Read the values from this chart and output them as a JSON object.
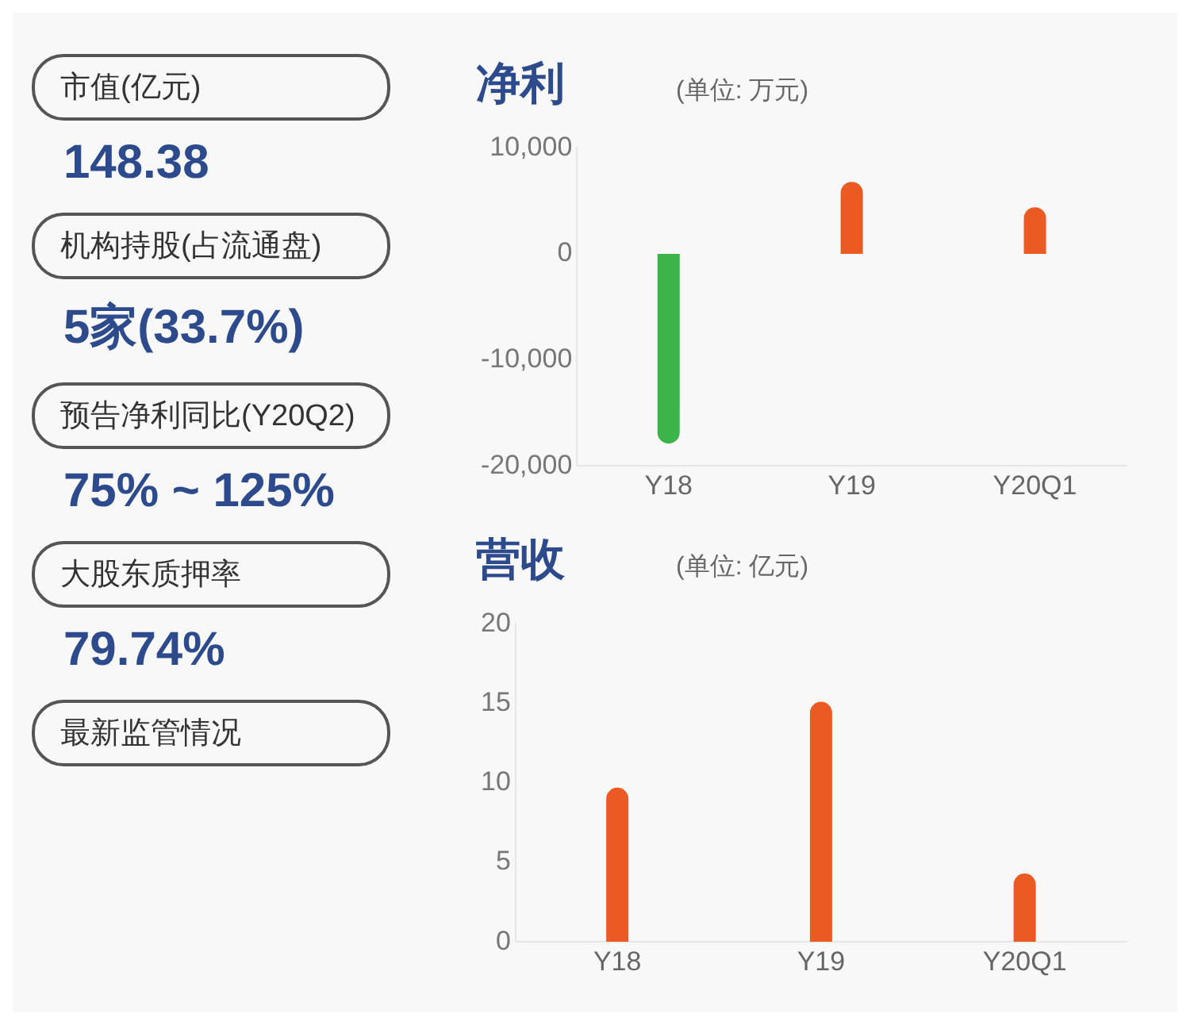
{
  "chart_data": [
    {
      "type": "other",
      "annotations": [
        "市值(亿元)",
        "148.38",
        "机构持股(占流通盘)",
        "5家(33.7%)",
        "预告净利同比(Y20Q2)",
        "75% ~ 125%",
        "大股东质押率",
        "79.74%",
        "最新监管情况"
      ]
    },
    {
      "type": "bar",
      "title": "净利",
      "subtitle": "(单位: 万元)",
      "categories": [
        "Y18",
        "Y19",
        "Y20Q1"
      ],
      "values": [
        -17900,
        6800,
        4400
      ],
      "colors": [
        "#3cb44a",
        "#ea5a22",
        "#ea5a22"
      ],
      "ylim": [
        -20000,
        10000
      ],
      "yticks": [
        {
          "value": -20000,
          "label": "-20,000"
        },
        {
          "value": -10000,
          "label": "-10,000"
        },
        {
          "value": 0,
          "label": "0"
        },
        {
          "value": 10000,
          "label": "10,000"
        }
      ],
      "grid": false
    },
    {
      "type": "bar",
      "title": "营收",
      "subtitle": "(单位: 亿元)",
      "categories": [
        "Y18",
        "Y19",
        "Y20Q1"
      ],
      "values": [
        9.7,
        15.1,
        4.3
      ],
      "colors": [
        "#ea5a22",
        "#ea5a22",
        "#ea5a22"
      ],
      "ylim": [
        0,
        20
      ],
      "yticks": [
        0,
        5,
        10,
        15,
        20
      ],
      "grid": false
    }
  ]
}
